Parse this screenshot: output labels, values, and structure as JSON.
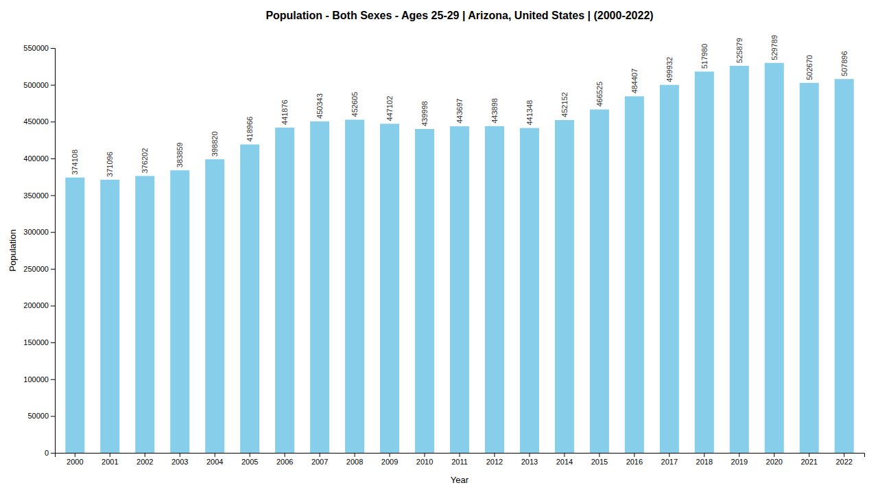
{
  "chart_data": {
    "type": "bar",
    "title": "Population - Both Sexes - Ages 25-29 | Arizona, United States |  (2000-2022)",
    "xlabel": "Year",
    "ylabel": "Population",
    "categories": [
      "2000",
      "2001",
      "2002",
      "2003",
      "2004",
      "2005",
      "2006",
      "2007",
      "2008",
      "2009",
      "2010",
      "2011",
      "2012",
      "2013",
      "2014",
      "2015",
      "2016",
      "2017",
      "2018",
      "2019",
      "2020",
      "2021",
      "2022"
    ],
    "values": [
      374108,
      371096,
      376202,
      383859,
      398820,
      418966,
      441876,
      450343,
      452605,
      447102,
      439998,
      443697,
      443898,
      441348,
      452152,
      466525,
      484407,
      499932,
      517980,
      525879,
      529789,
      502670,
      507896
    ],
    "color": "#87CEEB",
    "ylim": [
      0,
      550000
    ],
    "yticks": [
      0,
      50000,
      100000,
      150000,
      200000,
      250000,
      300000,
      350000,
      400000,
      450000,
      500000,
      550000
    ],
    "grid": false,
    "data_labels": true
  }
}
